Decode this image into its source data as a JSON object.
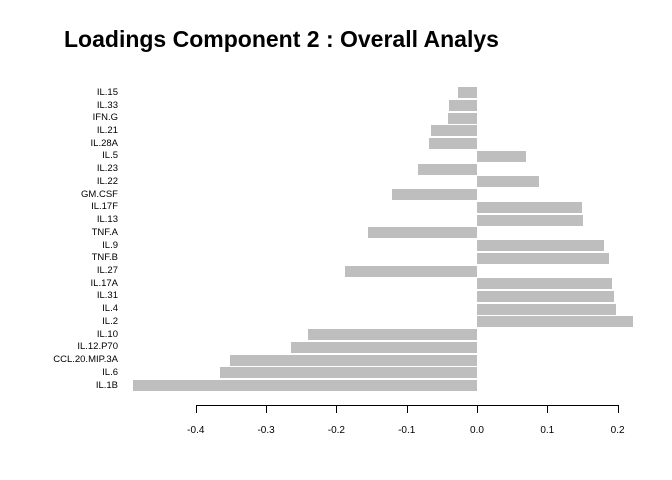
{
  "chart_data": {
    "type": "bar",
    "orientation": "horizontal",
    "title": "Loadings Component 2 : Overall Analys",
    "categories": [
      "IL.15",
      "IL.33",
      "IFN.G",
      "IL.21",
      "IL.28A",
      "IL.5",
      "IL.23",
      "IL.22",
      "GM.CSF",
      "IL.17F",
      "IL.13",
      "TNF.A",
      "IL.9",
      "TNF.B",
      "IL.27",
      "IL.17A",
      "IL.31",
      "IL.4",
      "IL.2",
      "IL.10",
      "IL.12.P70",
      "CCL.20.MIP.3A",
      "IL.6",
      "IL.1B"
    ],
    "values": [
      -0.027,
      -0.04,
      -0.041,
      -0.065,
      -0.068,
      0.069,
      -0.084,
      0.088,
      -0.121,
      0.15,
      0.151,
      -0.155,
      0.18,
      0.188,
      -0.188,
      0.192,
      0.195,
      0.198,
      0.222,
      -0.24,
      -0.265,
      -0.351,
      -0.366,
      -0.489
    ],
    "xlabel": "",
    "ylabel": "",
    "xticks": [
      -0.4,
      -0.3,
      -0.2,
      -0.1,
      0.0,
      0.1,
      0.2
    ],
    "xtick_labels": [
      "-0.4",
      "-0.3",
      "-0.2",
      "-0.1",
      "0.0",
      "0.1",
      "0.2"
    ],
    "xlim": [
      -0.49,
      0.24
    ],
    "grid": false,
    "legend": false,
    "bar_color": "#bebebe",
    "axis_color": "#000000",
    "background_color": "#ffffff"
  }
}
